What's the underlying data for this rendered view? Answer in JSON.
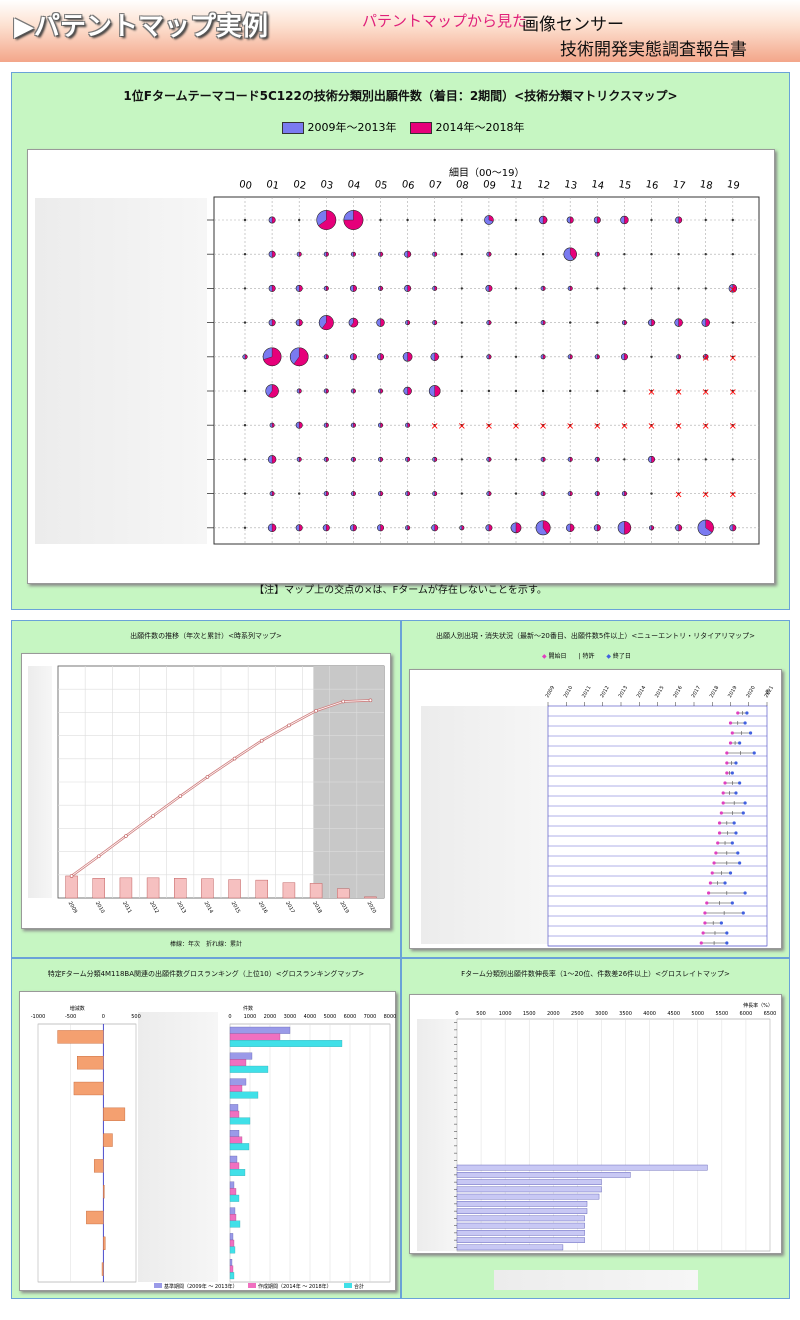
{
  "header": {
    "title": "▶パテントマップ実例",
    "subtitle": "パテントマップから見た",
    "report_line1": "画像センサー",
    "report_line2": "技術開発実態調査報告書"
  },
  "matrix": {
    "title": "1位Fタームテーマコード5C122の技術分類別出願件数（着目：2期間）<技術分類マトリクスマップ>",
    "legend": [
      "2009年～2013年",
      "2014年～2018年"
    ],
    "colors": {
      "period1": "#7a7af0",
      "period2": "#e6007a",
      "cross": "#ff0000"
    },
    "axis_label": "細目（00～19）",
    "note": "【注】マップ上の交点の×は、Fタームが存在しないことを示す。",
    "chart_data": {
      "type": "pie-matrix",
      "columns": [
        "00",
        "01",
        "02",
        "03",
        "04",
        "05",
        "06",
        "07",
        "08",
        "09",
        "11",
        "12",
        "13",
        "14",
        "15",
        "16",
        "17",
        "18",
        "19"
      ],
      "rows": 10,
      "cells": [
        [
          0,
          1,
          0,
          2,
          0,
          0,
          0,
          0,
          0,
          0,
          0,
          0,
          0,
          0,
          0,
          0,
          0,
          0,
          0
        ],
        [
          0,
          1,
          0,
          3,
          0.3,
          0,
          0,
          0,
          0,
          0,
          0,
          0,
          0,
          0,
          0,
          0,
          0,
          0,
          0
        ],
        [
          0,
          3,
          0.5,
          11,
          0.6,
          0,
          0,
          0,
          0,
          0,
          0,
          0,
          0,
          0,
          0,
          0,
          0,
          0,
          0
        ],
        [
          0,
          4,
          0.4,
          12,
          0.45,
          0,
          0,
          0,
          0,
          0,
          0,
          0,
          0,
          0,
          0,
          0,
          0,
          0,
          0
        ],
        [
          0,
          5,
          0.5,
          13,
          0.5,
          0,
          0,
          0,
          0,
          0,
          0,
          0,
          0,
          0,
          0,
          0,
          0,
          0,
          0
        ],
        [
          0,
          9,
          0.5,
          14,
          0.5,
          0,
          0,
          0,
          0,
          0,
          0,
          0,
          0,
          0,
          0,
          0,
          0,
          0,
          0
        ],
        [
          0,
          16,
          0.5,
          0,
          0,
          0,
          0,
          0,
          0,
          0,
          0,
          0,
          0,
          0,
          0,
          0,
          0,
          0,
          0
        ],
        [
          1,
          2,
          0.5,
          12,
          0.5,
          0,
          0,
          0,
          0,
          0,
          0,
          0,
          0,
          0,
          0,
          0,
          0,
          0,
          0
        ],
        [
          1,
          6,
          0.5,
          0,
          0,
          0,
          0,
          0,
          0,
          0,
          0,
          0,
          0,
          0,
          0,
          0,
          0,
          0,
          0
        ],
        [
          1,
          18,
          0.5,
          0,
          0,
          0,
          0,
          0,
          0,
          0,
          0,
          0,
          0,
          0,
          0,
          0,
          0,
          0,
          0
        ]
      ],
      "pies": [
        [
          0,
          1,
          1,
          0.5
        ],
        [
          0,
          3,
          9,
          0.65
        ],
        [
          0,
          4,
          9,
          0.75
        ],
        [
          0,
          9,
          2,
          0.3
        ],
        [
          0,
          11,
          1.5,
          0.5
        ],
        [
          0,
          12,
          1,
          0.5
        ],
        [
          0,
          13,
          1,
          0.5
        ],
        [
          0,
          14,
          1.5,
          0.5
        ],
        [
          0,
          16,
          1,
          0.5
        ],
        [
          1,
          1,
          1,
          0.5
        ],
        [
          1,
          6,
          1,
          0.5
        ],
        [
          1,
          12,
          4,
          0.4
        ],
        [
          1,
          2,
          0.4,
          0.5
        ],
        [
          1,
          3,
          0.4,
          0.5
        ],
        [
          1,
          4,
          0.4,
          0.5
        ],
        [
          1,
          5,
          0.4,
          0.5
        ],
        [
          1,
          7,
          0.4,
          0.5
        ],
        [
          1,
          9,
          0.4,
          0.5
        ],
        [
          1,
          13,
          0.4,
          0.5
        ],
        [
          2,
          1,
          1,
          0.5
        ],
        [
          2,
          2,
          1,
          0.5
        ],
        [
          2,
          4,
          1,
          0.5
        ],
        [
          2,
          6,
          1,
          0.5
        ],
        [
          2,
          9,
          1,
          0.5
        ],
        [
          2,
          18,
          1.5,
          0.5
        ],
        [
          2,
          3,
          0.4,
          0.5
        ],
        [
          2,
          5,
          0.4,
          0.5
        ],
        [
          2,
          7,
          0.4,
          0.5
        ],
        [
          2,
          11,
          0.4,
          0.5
        ],
        [
          2,
          12,
          0.4,
          0.5
        ],
        [
          3,
          1,
          1,
          0.5
        ],
        [
          3,
          2,
          1,
          0.5
        ],
        [
          3,
          3,
          5,
          0.6
        ],
        [
          3,
          4,
          2,
          0.6
        ],
        [
          3,
          5,
          1.5,
          0.5
        ],
        [
          3,
          15,
          1,
          0.5
        ],
        [
          3,
          16,
          1.5,
          0.5
        ],
        [
          3,
          17,
          1.5,
          0.5
        ],
        [
          3,
          6,
          0.4,
          0.5
        ],
        [
          3,
          7,
          0.4,
          0.5
        ],
        [
          3,
          9,
          0.4,
          0.5
        ],
        [
          3,
          11,
          0.4,
          0.5
        ],
        [
          3,
          14,
          0.4,
          0.5
        ],
        [
          4,
          0,
          0.5,
          0.5
        ],
        [
          4,
          1,
          8,
          0.7
        ],
        [
          4,
          2,
          8,
          0.6
        ],
        [
          4,
          4,
          1,
          0.5
        ],
        [
          4,
          5,
          1,
          0.5
        ],
        [
          4,
          6,
          2,
          0.5
        ],
        [
          4,
          7,
          1.5,
          0.5
        ],
        [
          4,
          14,
          1,
          0.5
        ],
        [
          4,
          17,
          0.6,
          0.5
        ],
        [
          4,
          3,
          0.4,
          0.5
        ],
        [
          4,
          9,
          0.4,
          0.5
        ],
        [
          4,
          11,
          0.4,
          0.5
        ],
        [
          4,
          12,
          0.4,
          0.5
        ],
        [
          4,
          13,
          0.4,
          0.5
        ],
        [
          4,
          16,
          0.4,
          0.5
        ],
        [
          5,
          1,
          4,
          0.6
        ],
        [
          5,
          6,
          1.5,
          0.5
        ],
        [
          5,
          7,
          3,
          0.5
        ],
        [
          5,
          2,
          0.4,
          0.5
        ],
        [
          5,
          3,
          0.4,
          0.5
        ],
        [
          5,
          4,
          0.4,
          0.5
        ],
        [
          5,
          5,
          0.4,
          0.5
        ],
        [
          6,
          2,
          1,
          0.5
        ],
        [
          6,
          1,
          0.4,
          0.5
        ],
        [
          6,
          3,
          0.4,
          0.5
        ],
        [
          6,
          4,
          0.4,
          0.5
        ],
        [
          6,
          5,
          0.4,
          0.5
        ],
        [
          6,
          6,
          0.4,
          0.5
        ],
        [
          7,
          1,
          1.5,
          0.5
        ],
        [
          7,
          15,
          1,
          0.5
        ],
        [
          7,
          2,
          0.4,
          0.5
        ],
        [
          7,
          3,
          0.4,
          0.5
        ],
        [
          7,
          4,
          0.4,
          0.5
        ],
        [
          7,
          5,
          0.4,
          0.5
        ],
        [
          7,
          6,
          0.4,
          0.5
        ],
        [
          7,
          7,
          0.4,
          0.5
        ],
        [
          7,
          9,
          0.4,
          0.5
        ],
        [
          7,
          11,
          0.4,
          0.5
        ],
        [
          7,
          12,
          0.4,
          0.5
        ],
        [
          7,
          13,
          0.4,
          0.5
        ],
        [
          8,
          3,
          0.5,
          0.5
        ],
        [
          8,
          5,
          0.5,
          0.5
        ],
        [
          8,
          14,
          0.5,
          0.5
        ],
        [
          8,
          1,
          0.4,
          0.5
        ],
        [
          8,
          4,
          0.4,
          0.5
        ],
        [
          8,
          6,
          0.4,
          0.5
        ],
        [
          8,
          7,
          0.4,
          0.5
        ],
        [
          8,
          9,
          0.4,
          0.5
        ],
        [
          8,
          11,
          0.4,
          0.5
        ],
        [
          8,
          12,
          0.4,
          0.5
        ],
        [
          8,
          13,
          0.4,
          0.5
        ],
        [
          9,
          1,
          1.5,
          0.5
        ],
        [
          9,
          2,
          1,
          0.5
        ],
        [
          9,
          3,
          1,
          0.5
        ],
        [
          9,
          4,
          1,
          0.5
        ],
        [
          9,
          5,
          1,
          0.5
        ],
        [
          9,
          7,
          1,
          0.5
        ],
        [
          9,
          9,
          1,
          0.5
        ],
        [
          9,
          10,
          2.5,
          0.5
        ],
        [
          9,
          11,
          5,
          0.4
        ],
        [
          9,
          12,
          1.5,
          0.5
        ],
        [
          9,
          13,
          1,
          0.5
        ],
        [
          9,
          14,
          4,
          0.5
        ],
        [
          9,
          15,
          0.5,
          0.5
        ],
        [
          9,
          16,
          1,
          0.5
        ],
        [
          9,
          17,
          6,
          0.35
        ],
        [
          9,
          18,
          1,
          0.5
        ],
        [
          9,
          6,
          0.4,
          0.5
        ],
        [
          9,
          8,
          0.4,
          0.5
        ]
      ],
      "crosses": [
        [
          2,
          18
        ],
        [
          4,
          17
        ],
        [
          4,
          18
        ],
        [
          5,
          15
        ],
        [
          5,
          16
        ],
        [
          5,
          17
        ],
        [
          5,
          18
        ],
        [
          6,
          7
        ],
        [
          6,
          8
        ],
        [
          6,
          9
        ],
        [
          6,
          10
        ],
        [
          6,
          11
        ],
        [
          6,
          12
        ],
        [
          6,
          13
        ],
        [
          6,
          14
        ],
        [
          6,
          15
        ],
        [
          6,
          16
        ],
        [
          6,
          17
        ],
        [
          6,
          18
        ],
        [
          8,
          16
        ],
        [
          8,
          17
        ],
        [
          8,
          18
        ]
      ]
    }
  },
  "timeseries": {
    "title": "出願件数の推移（年次と累計）<時系列マップ>",
    "footnote": "棒線：年次　折れ線：累計",
    "year_unit": "年",
    "chart_data": {
      "type": "bar+line",
      "categories": [
        "2009",
        "2010",
        "2011",
        "2012",
        "2013",
        "2014",
        "2015",
        "2016",
        "2017",
        "2018",
        "2019",
        "2020"
      ],
      "annual": [
        0.095,
        0.085,
        0.087,
        0.087,
        0.085,
        0.083,
        0.079,
        0.077,
        0.066,
        0.063,
        0.04,
        0.005
      ],
      "cumulative": [
        0.095,
        0.18,
        0.267,
        0.354,
        0.439,
        0.522,
        0.601,
        0.678,
        0.744,
        0.807,
        0.847,
        0.852
      ],
      "shaded_from": "2018"
    }
  },
  "entry": {
    "title": "出願人別出現・消失状況（最新～20番目、出願件数5件以上）<ニューエントリ・リタイアリマップ>",
    "legend": [
      "開始日",
      "特許",
      "終了日"
    ],
    "year_unit": "年",
    "chart_data": {
      "type": "range",
      "years": [
        "2009",
        "2010",
        "2011",
        "2012",
        "2013",
        "2014",
        "2015",
        "2016",
        "2017",
        "2018",
        "2019",
        "2020",
        "2021"
      ],
      "rows": [
        [
          2019.4,
          2019.9
        ],
        [
          2019.0,
          2019.8
        ],
        [
          2019.1,
          2020.1
        ],
        [
          2019.0,
          2019.5
        ],
        [
          2018.8,
          2020.3
        ],
        [
          2018.8,
          2019.3
        ],
        [
          2018.8,
          2019.1
        ],
        [
          2018.7,
          2019.5
        ],
        [
          2018.6,
          2019.3
        ],
        [
          2018.6,
          2019.8
        ],
        [
          2018.5,
          2019.7
        ],
        [
          2018.4,
          2019.2
        ],
        [
          2018.4,
          2019.3
        ],
        [
          2018.3,
          2019.1
        ],
        [
          2018.2,
          2019.4
        ],
        [
          2018.1,
          2019.5
        ],
        [
          2018.0,
          2019.0
        ],
        [
          2017.9,
          2018.7
        ],
        [
          2017.8,
          2019.8
        ],
        [
          2017.7,
          2019.1
        ],
        [
          2017.6,
          2019.7
        ],
        [
          2017.6,
          2018.5
        ],
        [
          2017.5,
          2018.8
        ],
        [
          2017.4,
          2018.8
        ]
      ]
    }
  },
  "gross": {
    "title": "特定Fターム分類4M118BA関連の出願件数グロスランキング（上位10）<グロスランキングマップ>",
    "left_axis_label": "増減数",
    "right_axis_label": "件数",
    "left_ticks": [
      "-1000",
      "-500",
      "0",
      "500"
    ],
    "right_ticks": [
      "0",
      "1000",
      "2000",
      "3000",
      "4000",
      "5000",
      "6000",
      "7000",
      "8000"
    ],
    "legend": [
      "基準期間（2009年 ～ 2013年）",
      "作成期間（2014年 ～ 2018年）",
      "合計"
    ],
    "colors": {
      "base": "#9a9ae8",
      "current": "#f070c0",
      "total": "#40e0e8",
      "diff": "#f4a070"
    },
    "chart_data": {
      "type": "bar",
      "diff": [
        -700,
        -400,
        -450,
        330,
        140,
        -140,
        10,
        -260,
        30,
        -20
      ],
      "base": [
        3000,
        1100,
        800,
        400,
        450,
        350,
        200,
        250,
        150,
        100
      ],
      "current": [
        2500,
        800,
        600,
        450,
        600,
        450,
        300,
        300,
        200,
        150
      ],
      "total": [
        5600,
        1900,
        1400,
        1000,
        950,
        750,
        450,
        500,
        250,
        200
      ]
    }
  },
  "growth": {
    "title": "Fターム分類別出願件数伸長率（1～20位、件数差26件以上）<グロスレイトマップ>",
    "axis_label": "伸長率（%）",
    "ticks": [
      "0",
      "500",
      "1000",
      "1500",
      "2000",
      "2500",
      "3000",
      "3500",
      "4000",
      "4500",
      "5000",
      "5500",
      "6000",
      "6500"
    ],
    "chart_data": {
      "type": "bar",
      "values": [
        0,
        0,
        0,
        0,
        0,
        0,
        0,
        0,
        0,
        0,
        0,
        0,
        0,
        0,
        0,
        0,
        0,
        0,
        0,
        0,
        5200,
        3600,
        3000,
        3000,
        2950,
        2700,
        2700,
        2650,
        2650,
        2650,
        2650,
        2200
      ]
    }
  }
}
